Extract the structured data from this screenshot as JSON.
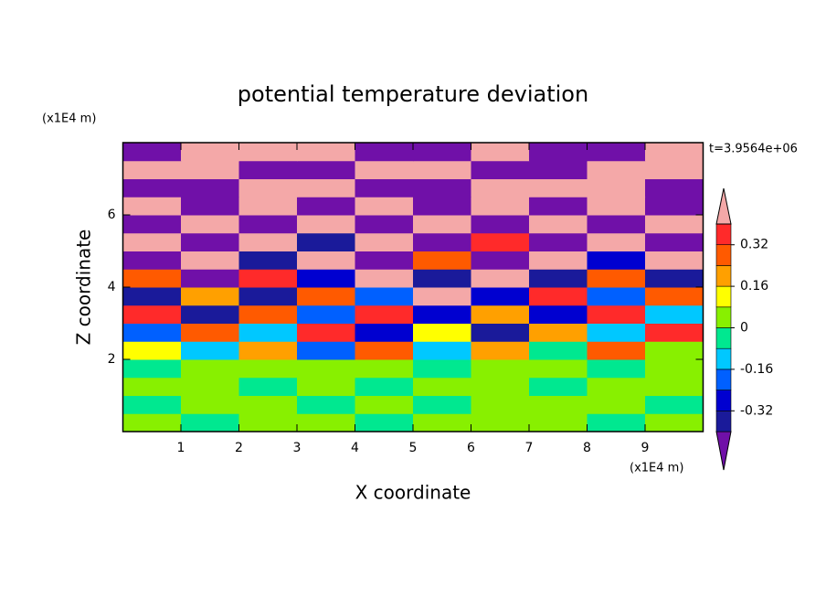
{
  "chart_data": {
    "type": "contour",
    "title": "potential temperature deviation",
    "x_label": "X coordinate",
    "y_label": "Z coordinate",
    "x_unit": "(x1E4 m)",
    "y_unit": "(x1E4 m)",
    "time_label": "t=3.9564e+06",
    "xlim": [
      0,
      10
    ],
    "ylim": [
      0,
      8
    ],
    "xticks": [
      1,
      2,
      3,
      4,
      5,
      6,
      7,
      8,
      9
    ],
    "yticks": [
      2,
      4,
      6
    ],
    "x": [
      0.5,
      1.5,
      2.5,
      3.5,
      4.5,
      5.5,
      6.5,
      7.5,
      8.5,
      9.5
    ],
    "z": [
      0.25,
      0.75,
      1.25,
      1.75,
      2.25,
      2.75,
      3.25,
      3.75,
      4.25,
      4.75,
      5.25,
      5.75,
      6.25,
      6.75,
      7.25,
      7.75
    ],
    "values": [
      [
        0.02,
        -0.03,
        0.03,
        0.02,
        -0.02,
        0.03,
        0.02,
        0.03,
        -0.03,
        0.02
      ],
      [
        -0.03,
        0.02,
        0.03,
        -0.02,
        0.03,
        -0.03,
        0.03,
        0.02,
        0.03,
        -0.02
      ],
      [
        0.03,
        0.03,
        -0.02,
        0.02,
        -0.03,
        0.02,
        0.03,
        -0.03,
        0.02,
        0.03
      ],
      [
        -0.02,
        0.03,
        0.02,
        0.03,
        0.02,
        -0.02,
        0.02,
        0.03,
        -0.02,
        0.02
      ],
      [
        0.1,
        -0.1,
        0.2,
        -0.2,
        0.3,
        -0.12,
        0.18,
        -0.05,
        0.26,
        0.05
      ],
      [
        -0.2,
        0.3,
        -0.1,
        0.36,
        -0.28,
        0.12,
        -0.36,
        0.22,
        -0.15,
        0.34
      ],
      [
        0.36,
        -0.36,
        0.28,
        -0.2,
        0.38,
        -0.3,
        0.2,
        -0.26,
        0.36,
        -0.1
      ],
      [
        -0.36,
        0.2,
        -0.38,
        0.3,
        -0.2,
        0.42,
        -0.3,
        0.36,
        -0.22,
        0.3
      ],
      [
        0.3,
        -0.42,
        0.36,
        -0.3,
        0.44,
        -0.36,
        0.42,
        -0.38,
        0.3,
        -0.36
      ],
      [
        -0.44,
        0.42,
        -0.36,
        0.44,
        -0.42,
        0.3,
        -0.44,
        0.42,
        -0.3,
        0.44
      ],
      [
        0.44,
        -0.44,
        0.45,
        -0.36,
        0.44,
        -0.45,
        0.36,
        -0.44,
        0.45,
        -0.42
      ],
      [
        -0.46,
        0.45,
        -0.46,
        0.46,
        -0.44,
        0.46,
        -0.46,
        0.45,
        -0.46,
        0.44
      ],
      [
        0.46,
        -0.46,
        0.46,
        -0.46,
        0.46,
        -0.46,
        0.46,
        -0.46,
        0.46,
        -0.46
      ],
      [
        -0.46,
        -0.46,
        0.46,
        0.46,
        -0.46,
        -0.46,
        0.46,
        0.46,
        0.46,
        -0.46
      ],
      [
        0.46,
        0.46,
        -0.46,
        -0.46,
        0.46,
        0.46,
        -0.46,
        -0.46,
        0.46,
        0.46
      ],
      [
        -0.46,
        0.46,
        0.46,
        0.46,
        -0.46,
        -0.46,
        0.46,
        -0.46,
        -0.46,
        0.46
      ]
    ],
    "levels": [
      -0.4,
      -0.32,
      -0.24,
      -0.16,
      -0.08,
      0,
      0.08,
      0.16,
      0.24,
      0.32,
      0.4
    ],
    "colors": [
      "#7010a8",
      "#1a1a9a",
      "#0000d0",
      "#0060ff",
      "#00c8ff",
      "#00e890",
      "#88f000",
      "#ffff00",
      "#ffa000",
      "#ff5a00",
      "#ff2a2a",
      "#f4a8a8"
    ],
    "colorbar_ticks": [
      -0.32,
      -0.16,
      0,
      0.16,
      0.32
    ]
  }
}
